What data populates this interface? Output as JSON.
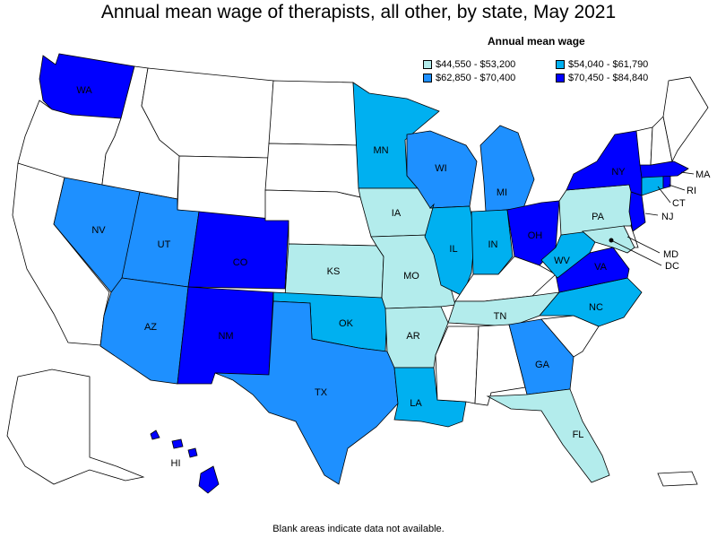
{
  "title": "Annual mean wage of therapists, all other, by state, May 2021",
  "legend": {
    "title": "Annual mean wage",
    "items": [
      {
        "label": "$44,550 - $53,200",
        "color": "#b3ecec"
      },
      {
        "label": "$54,040 - $61,790",
        "color": "#00b0f0"
      },
      {
        "label": "$62,850 - $70,400",
        "color": "#1e90ff"
      },
      {
        "label": "$70,450 - $84,840",
        "color": "#0000ff"
      }
    ]
  },
  "footnote": "Blank areas indicate data not available.",
  "colors": {
    "no_data": "#ffffff",
    "border": "#000000"
  },
  "states": {
    "WA": {
      "label": "WA",
      "bin": 3
    },
    "NV": {
      "label": "NV",
      "bin": 2
    },
    "UT": {
      "label": "UT",
      "bin": 2
    },
    "CO": {
      "label": "CO",
      "bin": 3
    },
    "AZ": {
      "label": "AZ",
      "bin": 2
    },
    "NM": {
      "label": "NM",
      "bin": 3
    },
    "TX": {
      "label": "TX",
      "bin": 2
    },
    "KS": {
      "label": "KS",
      "bin": 0
    },
    "OK": {
      "label": "OK",
      "bin": 1
    },
    "MN": {
      "label": "MN",
      "bin": 1
    },
    "IA": {
      "label": "IA",
      "bin": 0
    },
    "MO": {
      "label": "MO",
      "bin": 0
    },
    "AR": {
      "label": "AR",
      "bin": 0
    },
    "LA": {
      "label": "LA",
      "bin": 1
    },
    "WI": {
      "label": "WI",
      "bin": 2
    },
    "IL": {
      "label": "IL",
      "bin": 1
    },
    "MI": {
      "label": "MI",
      "bin": 2
    },
    "IN": {
      "label": "IN",
      "bin": 1
    },
    "OH": {
      "label": "OH",
      "bin": 3
    },
    "TN": {
      "label": "TN",
      "bin": 0
    },
    "GA": {
      "label": "GA",
      "bin": 2
    },
    "FL": {
      "label": "FL",
      "bin": 0
    },
    "NC": {
      "label": "NC",
      "bin": 1
    },
    "VA": {
      "label": "VA",
      "bin": 3
    },
    "WV": {
      "label": "WV",
      "bin": 1
    },
    "PA": {
      "label": "PA",
      "bin": 0
    },
    "NY": {
      "label": "NY",
      "bin": 3
    },
    "NJ": {
      "label": "NJ",
      "bin": 3
    },
    "MD": {
      "label": "MD",
      "bin": 0
    },
    "DC": {
      "label": "DC",
      "bin": 3
    },
    "CT": {
      "label": "CT",
      "bin": 1
    },
    "RI": {
      "label": "RI",
      "bin": 3
    },
    "MA": {
      "label": "MA",
      "bin": 3
    },
    "HI": {
      "label": "HI",
      "bin": 3
    },
    "CA": {
      "bin": null
    },
    "OR": {
      "bin": null
    },
    "ID": {
      "bin": null
    },
    "MT": {
      "bin": null
    },
    "WY": {
      "bin": null
    },
    "ND": {
      "bin": null
    },
    "SD": {
      "bin": null
    },
    "NE": {
      "bin": null
    },
    "MS": {
      "bin": null
    },
    "AL": {
      "bin": null
    },
    "SC": {
      "bin": null
    },
    "KY": {
      "bin": null
    },
    "DE": {
      "bin": null
    },
    "VT": {
      "bin": null
    },
    "NH": {
      "bin": null
    },
    "ME": {
      "bin": null
    },
    "AK": {
      "bin": null
    },
    "PR": {
      "bin": null
    }
  }
}
